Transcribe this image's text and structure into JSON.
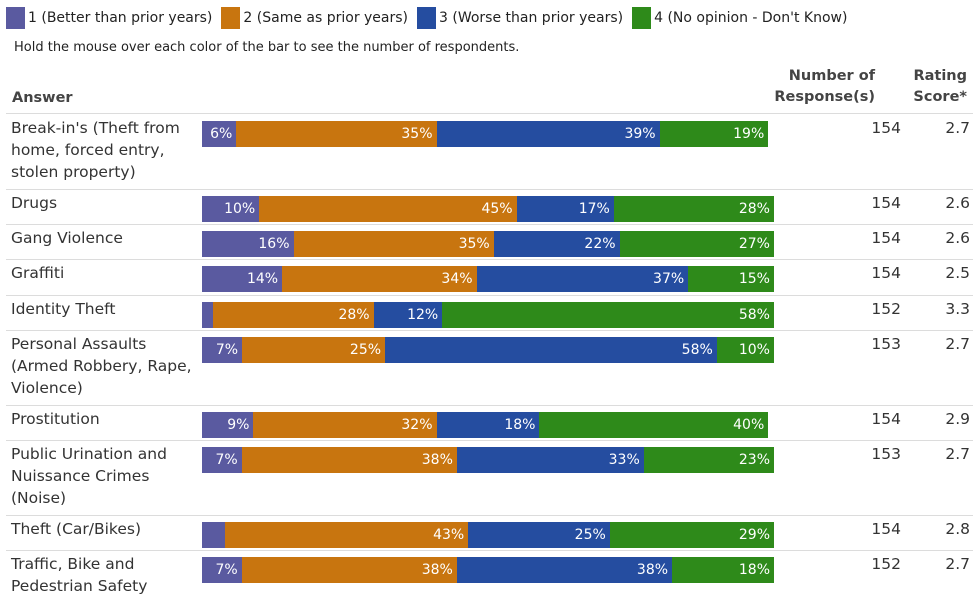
{
  "legend": [
    {
      "label": "1 (Better than prior years)",
      "color": "#5a5aa0"
    },
    {
      "label": "2 (Same as prior years)",
      "color": "#c8750f"
    },
    {
      "label": "3 (Worse than prior years)",
      "color": "#254da0"
    },
    {
      "label": "4 (No opinion - Don't Know)",
      "color": "#2e8a1a"
    }
  ],
  "hint": "Hold the mouse over each color of the bar to see the number of respondents.",
  "headers": {
    "answer": "Answer",
    "responses_line1": "Number of",
    "responses_line2": "Response(s)",
    "score_line1": "Rating",
    "score_line2": "Score*"
  },
  "chart_data": {
    "type": "bar",
    "stacked": true,
    "orientation": "horizontal",
    "categories": [
      "Break-in's (Theft from home, forced entry, stolen property)",
      "Drugs",
      "Gang Violence",
      "Graffiti",
      "Identity Theft",
      "Personal Assaults (Armed Robbery, Rape, Violence)",
      "Prostitution",
      "Public Urination and Nuissance Crimes (Noise)",
      "Theft (Car/Bikes)",
      "Traffic, Bike and Pedestrian Safety"
    ],
    "series": [
      {
        "name": "1 (Better than prior years)",
        "values": [
          6,
          10,
          16,
          14,
          2,
          7,
          9,
          7,
          4,
          7
        ]
      },
      {
        "name": "2 (Same as prior years)",
        "values": [
          35,
          45,
          35,
          34,
          28,
          25,
          32,
          38,
          43,
          38
        ]
      },
      {
        "name": "3 (Worse than prior years)",
        "values": [
          39,
          17,
          22,
          37,
          12,
          58,
          18,
          33,
          25,
          38
        ]
      },
      {
        "name": "4 (No opinion - Don't Know)",
        "values": [
          19,
          28,
          27,
          15,
          58,
          10,
          40,
          23,
          29,
          18
        ]
      }
    ],
    "value_labels": [
      [
        "6%",
        "35%",
        "39%",
        "19%"
      ],
      [
        "10%",
        "45%",
        "17%",
        "28%"
      ],
      [
        "16%",
        "35%",
        "22%",
        "27%"
      ],
      [
        "14%",
        "34%",
        "37%",
        "15%"
      ],
      [
        "",
        "28%",
        "12%",
        "58%"
      ],
      [
        "7%",
        "25%",
        "58%",
        "10%"
      ],
      [
        "9%",
        "32%",
        "18%",
        "40%"
      ],
      [
        "7%",
        "38%",
        "33%",
        "23%"
      ],
      [
        "",
        "43%",
        "25%",
        "29%"
      ],
      [
        "7%",
        "38%",
        "38%",
        "18%"
      ]
    ],
    "responses": [
      "154",
      "154",
      "154",
      "154",
      "152",
      "153",
      "154",
      "153",
      "154",
      "152"
    ],
    "scores": [
      "2.7",
      "2.6",
      "2.6",
      "2.5",
      "3.3",
      "2.7",
      "2.9",
      "2.7",
      "2.8",
      "2.7"
    ]
  }
}
